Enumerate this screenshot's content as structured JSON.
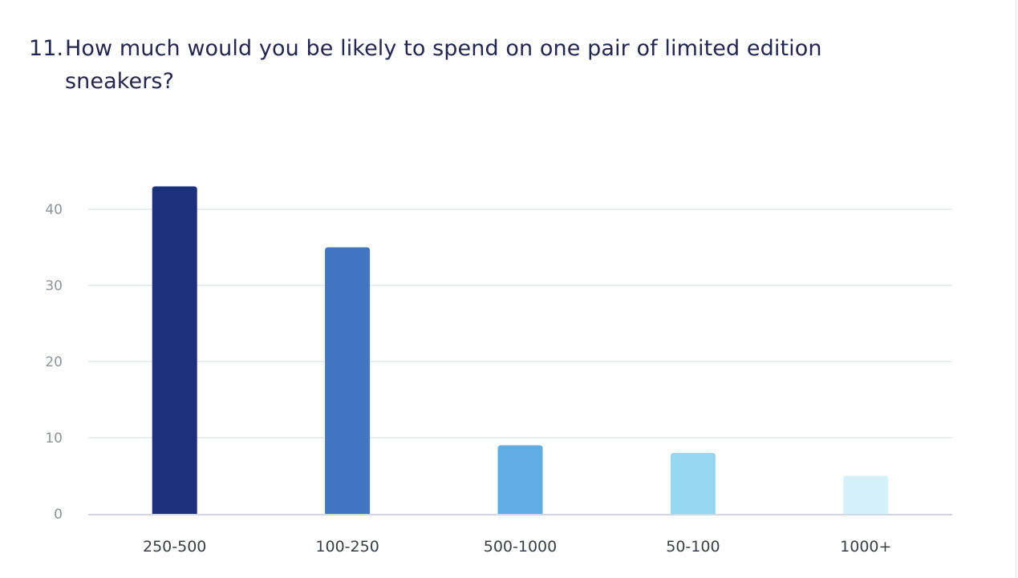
{
  "question": {
    "number": "11.",
    "text": "How much would you be likely to spend on one pair of limited edition sneakers?"
  },
  "chart_data": {
    "type": "bar",
    "categories": [
      "250-500",
      "100-250",
      "500-1000",
      "50-100",
      "1000+"
    ],
    "values": [
      43,
      35,
      9,
      8,
      5
    ],
    "ylim": [
      0,
      40
    ],
    "yticks": [
      0,
      10,
      20,
      30,
      40
    ],
    "grid": true,
    "colors": [
      "#1b317c",
      "#4175c1",
      "#5fade3",
      "#97d6f0",
      "#d5f0f9"
    ],
    "gridColor": "#e4e7eb",
    "axisColor": "#cfd8e3"
  }
}
